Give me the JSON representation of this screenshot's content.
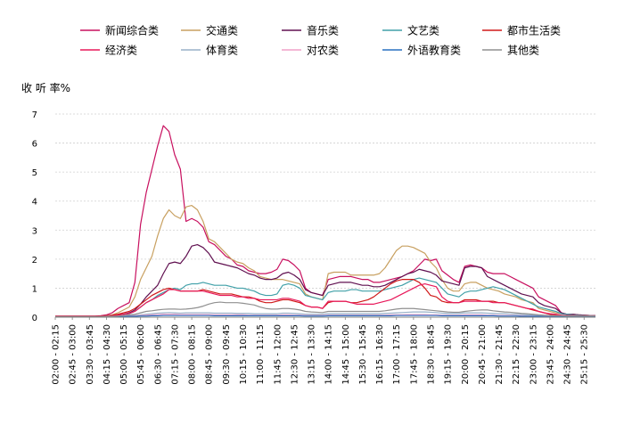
{
  "chart_data": {
    "type": "line",
    "title": "",
    "ylabel": "收 听 率%",
    "xlabel": "",
    "ylim": [
      0,
      7
    ],
    "yticks": [
      0,
      1,
      2,
      3,
      4,
      5,
      6,
      7
    ],
    "grid": true,
    "legend_position": "top",
    "x": [
      "02:00",
      "02:15",
      "02:30",
      "02:45",
      "03:00",
      "03:15",
      "03:30",
      "03:45",
      "04:00",
      "04:15",
      "04:30",
      "04:45",
      "05:00",
      "05:15",
      "05:30",
      "05:45",
      "06:00",
      "06:15",
      "06:30",
      "06:45",
      "07:00",
      "07:15",
      "07:30",
      "07:45",
      "08:00",
      "08:15",
      "08:30",
      "08:45",
      "09:00",
      "09:15",
      "09:30",
      "09:45",
      "10:00",
      "10:15",
      "10:30",
      "10:45",
      "11:00",
      "11:15",
      "11:30",
      "11:45",
      "12:00",
      "12:15",
      "12:30",
      "12:45",
      "13:00",
      "13:15",
      "13:30",
      "13:45",
      "14:00",
      "14:15",
      "14:30",
      "14:45",
      "15:00",
      "15:15",
      "15:30",
      "15:45",
      "16:00",
      "16:15",
      "16:30",
      "16:45",
      "17:00",
      "17:15",
      "17:30",
      "17:45",
      "18:00",
      "18:15",
      "18:30",
      "18:45",
      "19:00",
      "19:15",
      "19:30",
      "19:45",
      "20:00",
      "20:15",
      "20:30",
      "20:45",
      "21:00",
      "21:15",
      "21:30",
      "21:45",
      "22:00",
      "22:15",
      "22:30",
      "22:45",
      "23:00",
      "23:15",
      "23:30",
      "23:45",
      "24:00",
      "24:15",
      "24:30",
      "24:45",
      "25:00",
      "25:15",
      "25:30",
      "25:45"
    ],
    "tick_labels": [
      "02:00 - 02:15",
      "02:45 - 03:00",
      "03:30 - 03:45",
      "04:15 - 04:30",
      "05:00 - 05:15",
      "05:45 - 06:00",
      "06:30 - 06:45",
      "07:15 - 07:30",
      "08:00 - 08:15",
      "08:45 - 09:00",
      "09:30 - 09:45",
      "10:15 - 10:30",
      "11:00 - 11:15",
      "11:45 - 12:00",
      "12:30 - 12:45",
      "13:15 - 13:30",
      "14:00 - 14:15",
      "14:45 - 15:00",
      "15:30 - 15:45",
      "16:15 - 16:30",
      "17:00 - 17:15",
      "17:45 - 18:00",
      "18:30 - 18:45",
      "19:15 - 19:30",
      "20:00 - 20:15",
      "20:45 - 21:00",
      "21:30 - 21:45",
      "22:15 - 22:30",
      "23:00 - 23:15",
      "23:45 - 24:00",
      "24:30 - 24:45",
      "25:15 - 25:30"
    ],
    "series": [
      {
        "name": "新闻综合类",
        "color": "#c8105f",
        "values": [
          0.04,
          0.04,
          0.04,
          0.04,
          0.04,
          0.04,
          0.04,
          0.04,
          0.05,
          0.08,
          0.15,
          0.3,
          0.4,
          0.5,
          1.2,
          3.2,
          4.3,
          5.1,
          5.9,
          6.6,
          6.4,
          5.6,
          5.1,
          3.3,
          3.4,
          3.3,
          3.1,
          2.6,
          2.5,
          2.3,
          2.1,
          2.0,
          1.8,
          1.75,
          1.6,
          1.55,
          1.5,
          1.5,
          1.55,
          1.65,
          2.0,
          1.95,
          1.8,
          1.6,
          1.0,
          0.85,
          0.8,
          0.75,
          1.3,
          1.35,
          1.4,
          1.4,
          1.4,
          1.35,
          1.3,
          1.3,
          1.2,
          1.2,
          1.25,
          1.3,
          1.35,
          1.4,
          1.5,
          1.6,
          1.8,
          2.0,
          1.95,
          2.0,
          1.6,
          1.45,
          1.3,
          1.2,
          1.75,
          1.8,
          1.75,
          1.7,
          1.55,
          1.5,
          1.5,
          1.5,
          1.4,
          1.3,
          1.2,
          1.1,
          1.0,
          0.7,
          0.6,
          0.5,
          0.4,
          0.15,
          0.1,
          0.1,
          0.08,
          0.07,
          0.06,
          0.06
        ]
      },
      {
        "name": "交通类",
        "color": "#c8a060",
        "values": [
          0.02,
          0.02,
          0.02,
          0.02,
          0.02,
          0.02,
          0.02,
          0.02,
          0.03,
          0.05,
          0.08,
          0.15,
          0.25,
          0.35,
          0.7,
          1.3,
          1.7,
          2.1,
          2.8,
          3.4,
          3.7,
          3.5,
          3.4,
          3.8,
          3.85,
          3.7,
          3.3,
          2.7,
          2.6,
          2.4,
          2.2,
          2.0,
          1.9,
          1.85,
          1.7,
          1.6,
          1.4,
          1.35,
          1.3,
          1.3,
          1.3,
          1.25,
          1.2,
          1.15,
          0.8,
          0.7,
          0.65,
          0.6,
          1.5,
          1.55,
          1.55,
          1.55,
          1.45,
          1.45,
          1.45,
          1.45,
          1.45,
          1.5,
          1.7,
          2.0,
          2.3,
          2.45,
          2.45,
          2.4,
          2.3,
          2.2,
          1.9,
          1.7,
          1.3,
          1.0,
          0.9,
          0.9,
          1.15,
          1.2,
          1.2,
          1.1,
          1.0,
          0.95,
          0.9,
          0.8,
          0.75,
          0.7,
          0.6,
          0.55,
          0.5,
          0.3,
          0.25,
          0.2,
          0.15,
          0.12,
          0.1,
          0.1,
          0.08,
          0.07,
          0.06,
          0.06
        ]
      },
      {
        "name": "音乐类",
        "color": "#601050",
        "values": [
          0.02,
          0.02,
          0.02,
          0.02,
          0.02,
          0.02,
          0.02,
          0.02,
          0.03,
          0.04,
          0.05,
          0.08,
          0.1,
          0.15,
          0.25,
          0.45,
          0.7,
          0.9,
          1.1,
          1.5,
          1.85,
          1.9,
          1.85,
          2.1,
          2.45,
          2.5,
          2.4,
          2.2,
          1.9,
          1.85,
          1.8,
          1.75,
          1.7,
          1.6,
          1.5,
          1.45,
          1.35,
          1.3,
          1.3,
          1.35,
          1.5,
          1.55,
          1.45,
          1.3,
          0.95,
          0.85,
          0.8,
          0.75,
          1.1,
          1.15,
          1.2,
          1.2,
          1.2,
          1.15,
          1.1,
          1.1,
          1.05,
          1.05,
          1.1,
          1.2,
          1.3,
          1.4,
          1.5,
          1.55,
          1.65,
          1.6,
          1.55,
          1.45,
          1.25,
          1.2,
          1.15,
          1.1,
          1.7,
          1.75,
          1.75,
          1.7,
          1.4,
          1.3,
          1.2,
          1.1,
          1.0,
          0.9,
          0.8,
          0.75,
          0.7,
          0.5,
          0.4,
          0.35,
          0.3,
          0.15,
          0.1,
          0.1,
          0.08,
          0.07,
          0.06,
          0.06
        ]
      },
      {
        "name": "文艺类",
        "color": "#40a0a8",
        "values": [
          0.02,
          0.02,
          0.02,
          0.02,
          0.02,
          0.02,
          0.02,
          0.02,
          0.03,
          0.04,
          0.05,
          0.07,
          0.1,
          0.12,
          0.2,
          0.35,
          0.5,
          0.6,
          0.75,
          0.85,
          0.95,
          1.0,
          0.95,
          1.1,
          1.15,
          1.15,
          1.2,
          1.15,
          1.1,
          1.1,
          1.1,
          1.05,
          1.0,
          1.0,
          0.95,
          0.9,
          0.8,
          0.75,
          0.75,
          0.8,
          1.1,
          1.15,
          1.1,
          1.0,
          0.75,
          0.7,
          0.65,
          0.6,
          0.85,
          0.9,
          0.9,
          0.9,
          0.95,
          0.95,
          0.9,
          0.9,
          0.9,
          0.9,
          0.95,
          1.0,
          1.05,
          1.1,
          1.2,
          1.3,
          1.35,
          1.3,
          1.25,
          1.2,
          1.0,
          0.8,
          0.75,
          0.7,
          0.85,
          0.9,
          0.9,
          0.95,
          1.0,
          1.05,
          1.0,
          0.95,
          0.85,
          0.75,
          0.65,
          0.55,
          0.45,
          0.35,
          0.3,
          0.25,
          0.2,
          0.12,
          0.1,
          0.08,
          0.07,
          0.06,
          0.06,
          0.05
        ]
      },
      {
        "name": "都市生活类",
        "color": "#d01818",
        "values": [
          0.03,
          0.03,
          0.03,
          0.03,
          0.03,
          0.03,
          0.03,
          0.03,
          0.04,
          0.05,
          0.07,
          0.1,
          0.15,
          0.2,
          0.3,
          0.45,
          0.6,
          0.75,
          0.85,
          0.95,
          1.0,
          0.95,
          0.9,
          0.9,
          0.9,
          0.9,
          0.95,
          0.9,
          0.85,
          0.8,
          0.8,
          0.8,
          0.75,
          0.7,
          0.7,
          0.65,
          0.55,
          0.5,
          0.5,
          0.55,
          0.6,
          0.6,
          0.55,
          0.5,
          0.4,
          0.35,
          0.35,
          0.3,
          0.5,
          0.55,
          0.55,
          0.55,
          0.5,
          0.5,
          0.55,
          0.6,
          0.7,
          0.85,
          1.0,
          1.15,
          1.25,
          1.3,
          1.3,
          1.3,
          1.2,
          1.0,
          0.75,
          0.7,
          0.55,
          0.5,
          0.5,
          0.5,
          0.6,
          0.6,
          0.6,
          0.55,
          0.55,
          0.55,
          0.5,
          0.5,
          0.45,
          0.4,
          0.35,
          0.3,
          0.25,
          0.2,
          0.15,
          0.1,
          0.08,
          0.06,
          0.05,
          0.05,
          0.04,
          0.04,
          0.04,
          0.04
        ]
      },
      {
        "name": "经济类",
        "color": "#e8185a",
        "values": [
          0.02,
          0.02,
          0.02,
          0.02,
          0.02,
          0.02,
          0.02,
          0.02,
          0.03,
          0.04,
          0.05,
          0.07,
          0.1,
          0.13,
          0.2,
          0.35,
          0.5,
          0.6,
          0.7,
          0.8,
          0.95,
          0.95,
          0.9,
          0.9,
          0.9,
          0.9,
          0.9,
          0.85,
          0.8,
          0.75,
          0.75,
          0.75,
          0.7,
          0.7,
          0.65,
          0.65,
          0.6,
          0.6,
          0.6,
          0.6,
          0.65,
          0.65,
          0.6,
          0.55,
          0.4,
          0.35,
          0.35,
          0.3,
          0.55,
          0.55,
          0.55,
          0.55,
          0.5,
          0.45,
          0.45,
          0.45,
          0.45,
          0.5,
          0.55,
          0.6,
          0.7,
          0.8,
          0.9,
          1.0,
          1.1,
          1.15,
          1.1,
          1.05,
          0.7,
          0.55,
          0.5,
          0.5,
          0.55,
          0.55,
          0.55,
          0.55,
          0.55,
          0.5,
          0.5,
          0.5,
          0.45,
          0.4,
          0.35,
          0.3,
          0.28,
          0.2,
          0.15,
          0.12,
          0.1,
          0.07,
          0.06,
          0.06,
          0.05,
          0.05,
          0.05,
          0.05
        ]
      },
      {
        "name": "体育类",
        "color": "#98b0c8",
        "values": [
          0.01,
          0.01,
          0.01,
          0.01,
          0.01,
          0.01,
          0.01,
          0.01,
          0.01,
          0.02,
          0.02,
          0.03,
          0.04,
          0.05,
          0.06,
          0.08,
          0.1,
          0.12,
          0.14,
          0.15,
          0.16,
          0.15,
          0.14,
          0.15,
          0.15,
          0.15,
          0.15,
          0.15,
          0.14,
          0.14,
          0.14,
          0.14,
          0.13,
          0.13,
          0.13,
          0.12,
          0.12,
          0.12,
          0.12,
          0.12,
          0.14,
          0.14,
          0.13,
          0.12,
          0.1,
          0.1,
          0.1,
          0.1,
          0.12,
          0.12,
          0.12,
          0.12,
          0.12,
          0.12,
          0.12,
          0.12,
          0.12,
          0.12,
          0.13,
          0.14,
          0.15,
          0.16,
          0.17,
          0.18,
          0.18,
          0.18,
          0.17,
          0.16,
          0.14,
          0.13,
          0.13,
          0.13,
          0.15,
          0.15,
          0.15,
          0.15,
          0.14,
          0.13,
          0.12,
          0.12,
          0.11,
          0.1,
          0.09,
          0.08,
          0.07,
          0.06,
          0.05,
          0.05,
          0.04,
          0.03,
          0.03,
          0.03,
          0.03,
          0.03,
          0.03,
          0.03
        ]
      },
      {
        "name": "对农类",
        "color": "#f0a0c8",
        "values": [
          0.01,
          0.01,
          0.01,
          0.01,
          0.01,
          0.01,
          0.01,
          0.01,
          0.01,
          0.01,
          0.02,
          0.02,
          0.03,
          0.04,
          0.05,
          0.06,
          0.07,
          0.08,
          0.09,
          0.1,
          0.1,
          0.1,
          0.09,
          0.09,
          0.09,
          0.09,
          0.09,
          0.09,
          0.08,
          0.08,
          0.08,
          0.08,
          0.08,
          0.08,
          0.07,
          0.07,
          0.07,
          0.07,
          0.07,
          0.07,
          0.08,
          0.08,
          0.07,
          0.07,
          0.06,
          0.06,
          0.06,
          0.06,
          0.07,
          0.07,
          0.07,
          0.07,
          0.07,
          0.07,
          0.07,
          0.07,
          0.07,
          0.07,
          0.07,
          0.08,
          0.08,
          0.08,
          0.09,
          0.09,
          0.09,
          0.09,
          0.08,
          0.08,
          0.07,
          0.07,
          0.07,
          0.07,
          0.08,
          0.08,
          0.08,
          0.08,
          0.07,
          0.07,
          0.06,
          0.06,
          0.06,
          0.05,
          0.05,
          0.04,
          0.04,
          0.03,
          0.03,
          0.03,
          0.02,
          0.02,
          0.02,
          0.02,
          0.02,
          0.02,
          0.02,
          0.02
        ]
      },
      {
        "name": "外语教育类",
        "color": "#2870c0",
        "values": [
          0.01,
          0.01,
          0.01,
          0.01,
          0.01,
          0.01,
          0.01,
          0.01,
          0.01,
          0.01,
          0.02,
          0.02,
          0.02,
          0.03,
          0.03,
          0.04,
          0.04,
          0.05,
          0.05,
          0.06,
          0.06,
          0.06,
          0.06,
          0.06,
          0.06,
          0.06,
          0.06,
          0.06,
          0.05,
          0.05,
          0.05,
          0.05,
          0.05,
          0.05,
          0.05,
          0.05,
          0.05,
          0.05,
          0.05,
          0.05,
          0.05,
          0.05,
          0.05,
          0.05,
          0.04,
          0.04,
          0.04,
          0.04,
          0.05,
          0.05,
          0.05,
          0.05,
          0.05,
          0.05,
          0.05,
          0.05,
          0.05,
          0.05,
          0.05,
          0.05,
          0.06,
          0.06,
          0.06,
          0.06,
          0.06,
          0.06,
          0.06,
          0.06,
          0.05,
          0.05,
          0.05,
          0.05,
          0.05,
          0.05,
          0.05,
          0.05,
          0.05,
          0.05,
          0.04,
          0.04,
          0.04,
          0.04,
          0.03,
          0.03,
          0.03,
          0.03,
          0.02,
          0.02,
          0.02,
          0.02,
          0.02,
          0.02,
          0.02,
          0.02,
          0.02,
          0.02
        ]
      },
      {
        "name": "其他类",
        "color": "#909090",
        "values": [
          0.02,
          0.02,
          0.02,
          0.02,
          0.02,
          0.02,
          0.02,
          0.02,
          0.02,
          0.03,
          0.03,
          0.04,
          0.06,
          0.08,
          0.1,
          0.15,
          0.2,
          0.22,
          0.25,
          0.27,
          0.28,
          0.28,
          0.27,
          0.28,
          0.3,
          0.33,
          0.38,
          0.45,
          0.5,
          0.52,
          0.5,
          0.5,
          0.5,
          0.48,
          0.45,
          0.42,
          0.35,
          0.3,
          0.28,
          0.28,
          0.3,
          0.3,
          0.28,
          0.25,
          0.2,
          0.18,
          0.17,
          0.16,
          0.2,
          0.2,
          0.2,
          0.2,
          0.2,
          0.2,
          0.2,
          0.2,
          0.2,
          0.2,
          0.22,
          0.25,
          0.28,
          0.3,
          0.3,
          0.3,
          0.28,
          0.26,
          0.24,
          0.22,
          0.2,
          0.18,
          0.17,
          0.17,
          0.2,
          0.22,
          0.24,
          0.25,
          0.25,
          0.22,
          0.2,
          0.18,
          0.17,
          0.15,
          0.13,
          0.12,
          0.1,
          0.08,
          0.07,
          0.06,
          0.05,
          0.05,
          0.04,
          0.04,
          0.04,
          0.04,
          0.04,
          0.04
        ]
      }
    ]
  }
}
